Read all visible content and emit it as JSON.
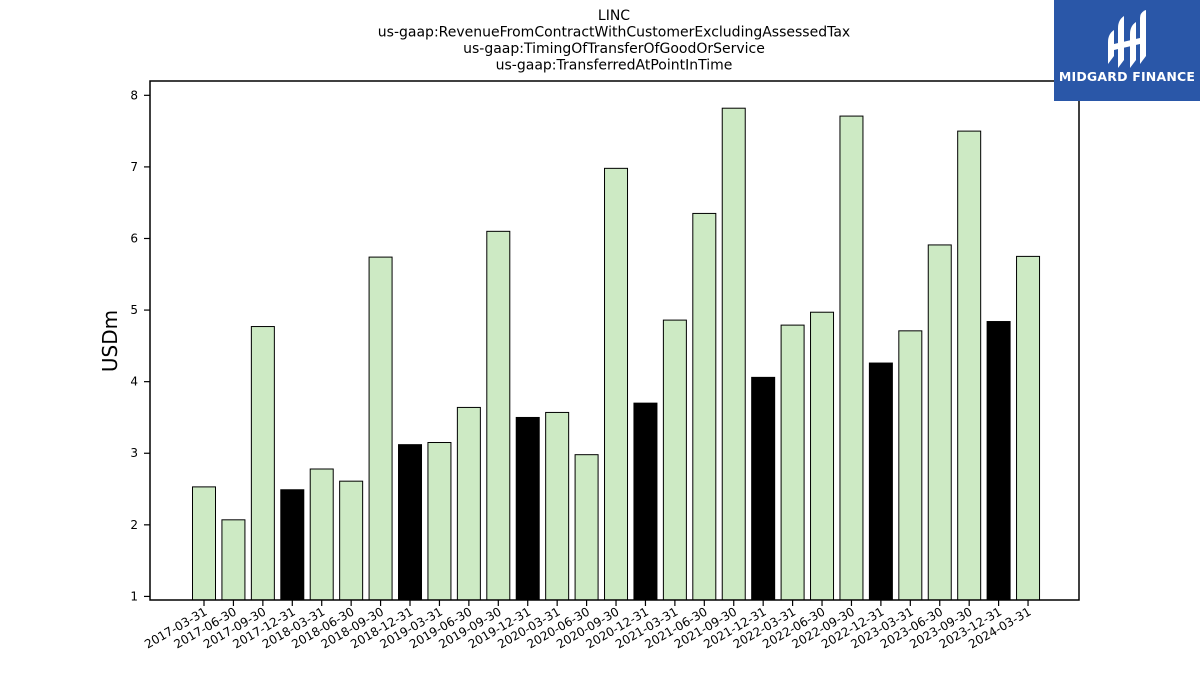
{
  "chart_data": {
    "type": "bar",
    "title_lines": [
      "LINC",
      "us-gaap:RevenueFromContractWithCustomerExcludingAssessedTax",
      "us-gaap:TimingOfTransferOfGoodOrService",
      "us-gaap:TransferredAtPointInTime"
    ],
    "ylabel": "USDm",
    "xlabel": "",
    "ylim": [
      0.95,
      8.2
    ],
    "yticks": [
      1,
      2,
      3,
      4,
      5,
      6,
      7,
      8
    ],
    "categories": [
      "2017-03-31",
      "2017-06-30",
      "2017-09-30",
      "2017-12-31",
      "2018-03-31",
      "2018-06-30",
      "2018-09-30",
      "2018-12-31",
      "2019-03-31",
      "2019-06-30",
      "2019-09-30",
      "2019-12-31",
      "2020-03-31",
      "2020-06-30",
      "2020-09-30",
      "2020-12-31",
      "2021-03-31",
      "2021-06-30",
      "2021-09-30",
      "2021-12-31",
      "2022-03-31",
      "2022-06-30",
      "2022-09-30",
      "2022-12-31",
      "2023-03-31",
      "2023-06-30",
      "2023-09-30",
      "2023-12-31",
      "2024-03-31"
    ],
    "values": [
      2.53,
      2.07,
      4.77,
      2.49,
      2.78,
      2.61,
      5.74,
      3.12,
      3.15,
      3.64,
      6.1,
      3.5,
      3.57,
      2.98,
      6.98,
      3.7,
      4.86,
      6.35,
      7.82,
      4.06,
      4.79,
      4.97,
      7.71,
      4.26,
      4.71,
      5.91,
      7.5,
      4.84,
      5.75
    ],
    "highlight_indices": [
      3,
      7,
      11,
      15,
      19,
      23,
      27
    ],
    "colors": {
      "normal": "#cdeac4",
      "highlight": "#000000",
      "edge": "#000000"
    },
    "grid": false
  },
  "logo": {
    "text": "MIDGARD FINANCE",
    "icon": "midgard-logo-icon",
    "color": "#2a57a8"
  }
}
